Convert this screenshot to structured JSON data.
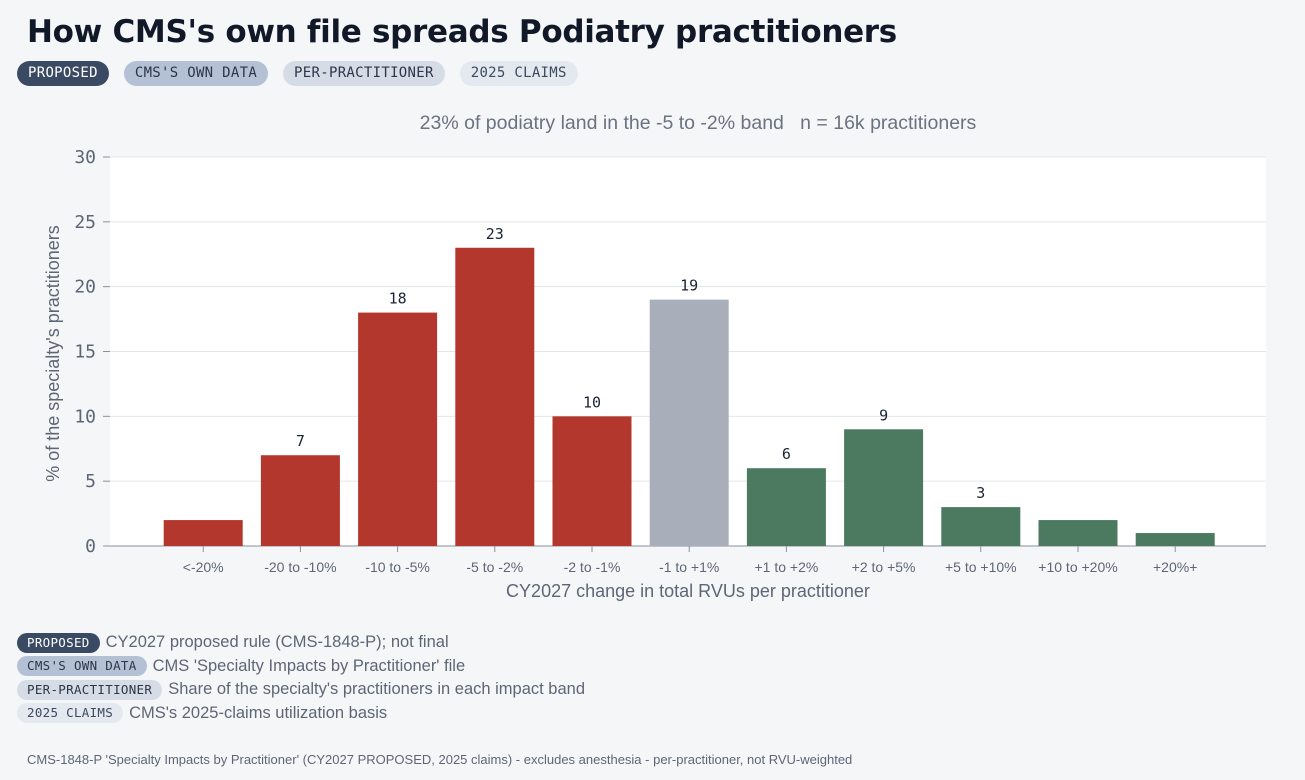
{
  "title": "How CMS's own file spreads Podiatry practitioners",
  "chips": [
    {
      "label": "PROPOSED",
      "style": "dark"
    },
    {
      "label": "CMS'S OWN DATA",
      "style": "mid"
    },
    {
      "label": "PER-PRACTITIONER",
      "style": "light"
    },
    {
      "label": "2025 CLAIMS",
      "style": "pale"
    }
  ],
  "legend": [
    {
      "chip": "PROPOSED",
      "style": "dark",
      "text": "CY2027 proposed rule (CMS-1848-P); not final"
    },
    {
      "chip": "CMS'S OWN DATA",
      "style": "mid",
      "text": "CMS 'Specialty Impacts by Practitioner' file"
    },
    {
      "chip": "PER-PRACTITIONER",
      "style": "light",
      "text": "Share of the specialty's practitioners in each impact band"
    },
    {
      "chip": "2025 CLAIMS",
      "style": "pale",
      "text": "CMS's 2025-claims utilization basis"
    }
  ],
  "footnote": "CMS-1848-P 'Specialty Impacts by Practitioner' (CY2027 PROPOSED, 2025 claims) - excludes anesthesia - per-practitioner, not RVU-weighted",
  "chart_data": {
    "type": "bar",
    "subtitle": "23% of podiatry land in the -5 to -2% band   n = 16k practitioners",
    "xlabel": "CY2027 change in total RVUs per practitioner",
    "ylabel": "% of the specialty's practitioners",
    "ylim": [
      0,
      30
    ],
    "yticks": [
      0,
      5,
      10,
      15,
      20,
      25,
      30
    ],
    "grid": true,
    "categories": [
      "<-20%",
      "-20 to -10%",
      "-10 to -5%",
      "-5 to -2%",
      "-2 to -1%",
      "-1 to +1%",
      "+1 to +2%",
      "+2 to +5%",
      "+5 to +10%",
      "+10 to +20%",
      "+20%+"
    ],
    "values": [
      2,
      7,
      18,
      23,
      10,
      19,
      6,
      9,
      3,
      2,
      1
    ],
    "data_labels": [
      "",
      "7",
      "18",
      "23",
      "10",
      "19",
      "6",
      "9",
      "3",
      "",
      ""
    ],
    "colors": [
      "#b3372c",
      "#b3372c",
      "#b3372c",
      "#b3372c",
      "#b3372c",
      "#a8afbb",
      "#4c7a61",
      "#4c7a61",
      "#4c7a61",
      "#4c7a61",
      "#4c7a61"
    ]
  }
}
